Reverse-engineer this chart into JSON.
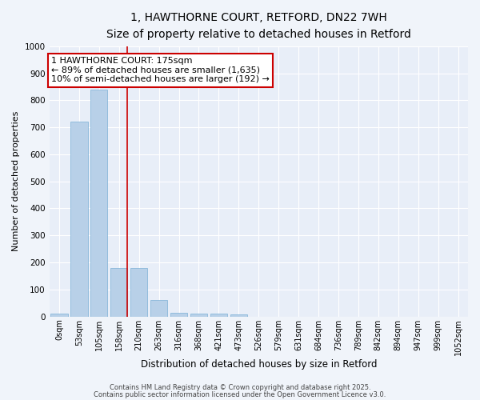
{
  "title": "1, HAWTHORNE COURT, RETFORD, DN22 7WH",
  "subtitle": "Size of property relative to detached houses in Retford",
  "xlabel": "Distribution of detached houses by size in Retford",
  "ylabel": "Number of detached properties",
  "categories": [
    "0sqm",
    "53sqm",
    "105sqm",
    "158sqm",
    "210sqm",
    "263sqm",
    "316sqm",
    "368sqm",
    "421sqm",
    "473sqm",
    "526sqm",
    "579sqm",
    "631sqm",
    "684sqm",
    "736sqm",
    "789sqm",
    "842sqm",
    "894sqm",
    "947sqm",
    "999sqm",
    "1052sqm"
  ],
  "values": [
    10,
    720,
    840,
    180,
    180,
    60,
    15,
    12,
    10,
    8,
    0,
    0,
    0,
    0,
    0,
    0,
    0,
    0,
    0,
    0,
    0
  ],
  "bar_color": "#b8d0e8",
  "bar_edge_color": "#7aafd4",
  "red_line_index": 3,
  "annotation_text": "1 HAWTHORNE COURT: 175sqm\n← 89% of detached houses are smaller (1,635)\n10% of semi-detached houses are larger (192) →",
  "annotation_box_facecolor": "#ffffff",
  "annotation_box_edgecolor": "#cc0000",
  "footer1": "Contains HM Land Registry data © Crown copyright and database right 2025.",
  "footer2": "Contains public sector information licensed under the Open Government Licence v3.0.",
  "ylim": [
    0,
    1000
  ],
  "fig_background": "#f0f4fa",
  "plot_background": "#e8eef8",
  "grid_color": "#ffffff",
  "title_fontsize": 10,
  "subtitle_fontsize": 9,
  "xlabel_fontsize": 8.5,
  "ylabel_fontsize": 8,
  "tick_fontsize": 7,
  "footer_fontsize": 6,
  "annotation_fontsize": 8
}
